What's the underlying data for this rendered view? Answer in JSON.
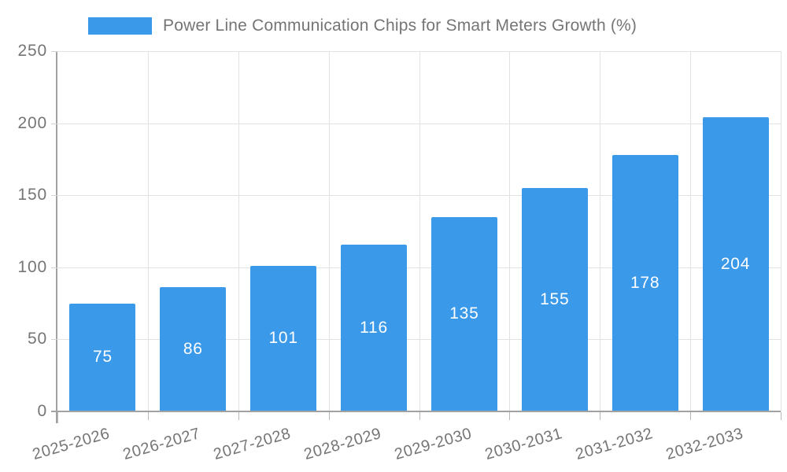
{
  "legend": {
    "label": "Power Line Communication Chips for Smart Meters Growth (%)"
  },
  "chart_data": {
    "type": "bar",
    "title": "Power Line Communication Chips for Smart Meters Growth (%)",
    "categories": [
      "2025-2026",
      "2026-2027",
      "2027-2028",
      "2028-2029",
      "2029-2030",
      "2030-2031",
      "2031-2032",
      "2032-2033"
    ],
    "values": [
      75,
      86,
      101,
      116,
      135,
      155,
      178,
      204
    ],
    "xlabel": "",
    "ylabel": "",
    "ylim": [
      0,
      250
    ],
    "yticks": [
      0,
      50,
      100,
      150,
      200,
      250
    ],
    "grid": true,
    "legend_position": "top",
    "bar_color": "#3b99ea",
    "bar_label_color": "#ffffff",
    "axis_text_color": "#757575",
    "gridline_color": "#e2e2e2",
    "axis_line_color": "#a2a2a2"
  }
}
